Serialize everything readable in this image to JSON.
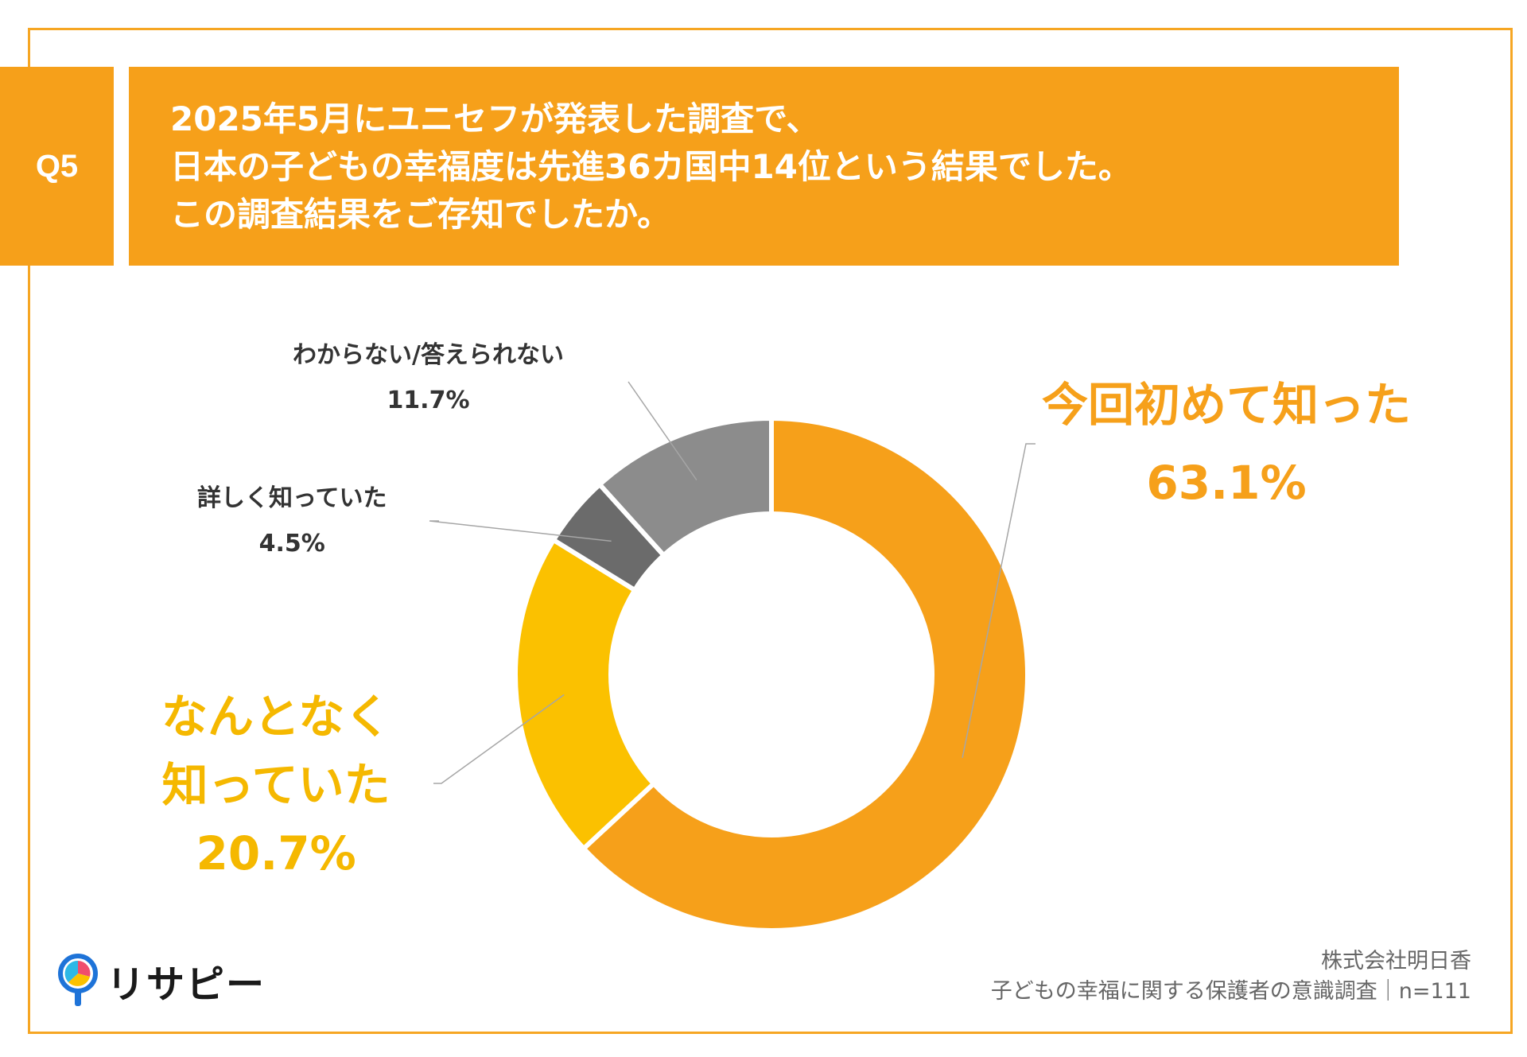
{
  "question": {
    "badge": "Q5",
    "lines": [
      "2025年5月にユニセフが発表した調査で、",
      "日本の子どもの幸福度は先進36カ国中14位という結果でした。",
      "この調査結果をご存知でしたか。"
    ]
  },
  "chart_data": {
    "type": "pie",
    "style": "donut",
    "title": "",
    "slices": [
      {
        "label": "今回初めて知った",
        "value": 63.1,
        "value_label": "63.1%",
        "color": "#F6A01A"
      },
      {
        "label": "なんとなく知っていた",
        "label_lines": [
          "なんとなく",
          "知っていた"
        ],
        "value": 20.7,
        "value_label": "20.7%",
        "color": "#FBC100"
      },
      {
        "label": "詳しく知っていた",
        "value": 4.5,
        "value_label": "4.5%",
        "color": "#6B6B6B"
      },
      {
        "label": "わからない/答えられない",
        "value": 11.7,
        "value_label": "11.7%",
        "color": "#8C8C8C"
      }
    ]
  },
  "footer": {
    "company": "株式会社明日香",
    "survey": "子どもの幸福に関する保護者の意識調査｜n=111"
  },
  "logo": {
    "text": "リサピー",
    "icon": "magnifier-logo-icon"
  }
}
